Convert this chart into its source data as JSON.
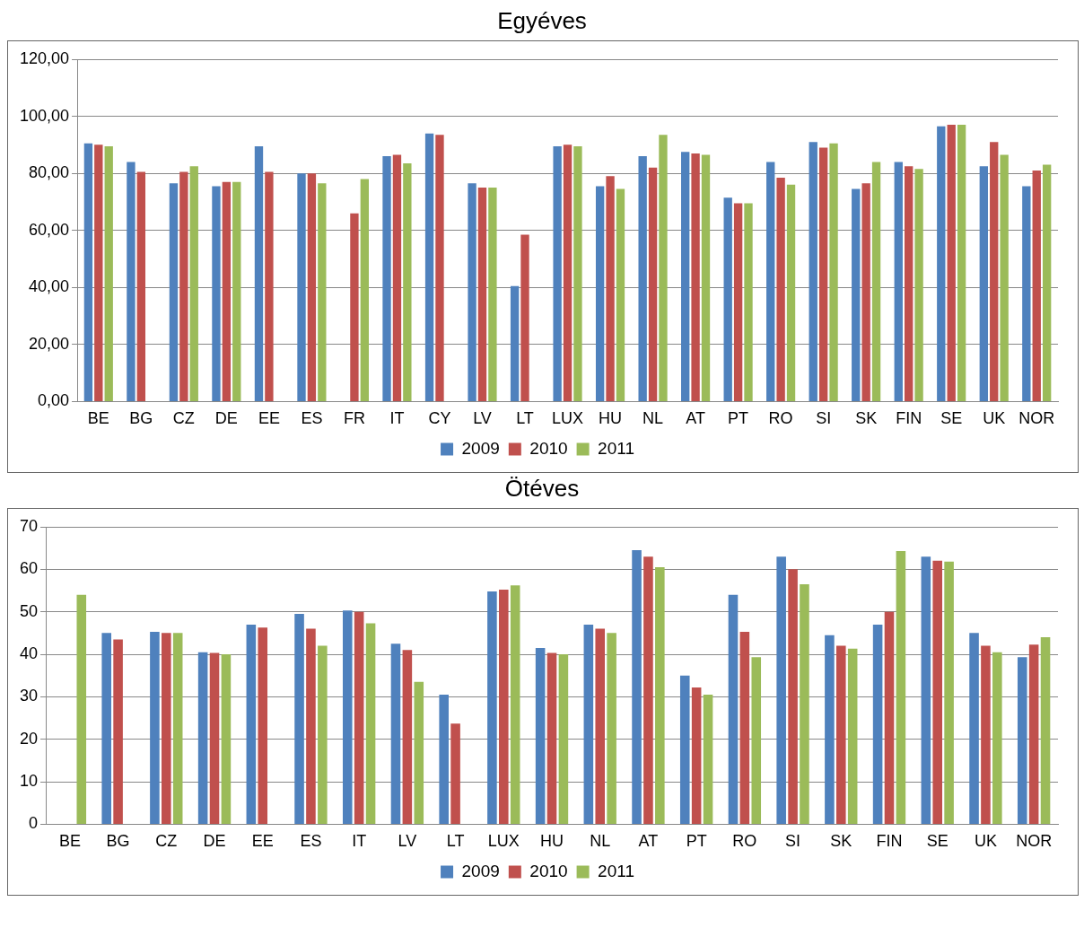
{
  "chart_data": [
    {
      "type": "bar",
      "title": "Egyéves",
      "categories": [
        "BE",
        "BG",
        "CZ",
        "DE",
        "EE",
        "ES",
        "FR",
        "IT",
        "CY",
        "LV",
        "LT",
        "LUX",
        "HU",
        "NL",
        "AT",
        "PT",
        "RO",
        "SI",
        "SK",
        "FIN",
        "SE",
        "UK",
        "NOR"
      ],
      "series": [
        {
          "name": "2009",
          "color": "#4f81bd",
          "values": [
            90.5,
            84,
            76.5,
            75.5,
            89.5,
            80,
            null,
            86,
            94,
            76.5,
            40.5,
            89.5,
            75.5,
            86,
            87.5,
            71.5,
            84,
            91,
            74.5,
            84,
            96.5,
            82.5,
            75.5
          ]
        },
        {
          "name": "2010",
          "color": "#c0504d",
          "values": [
            90,
            80.5,
            80.5,
            77,
            80.5,
            80,
            66,
            86.5,
            93.5,
            75,
            58.5,
            90,
            79,
            82,
            87,
            69.5,
            78.5,
            89,
            76.5,
            82.5,
            97,
            91,
            81
          ]
        },
        {
          "name": "2011",
          "color": "#9bbb59",
          "values": [
            89.5,
            null,
            82.5,
            77,
            null,
            76.5,
            78,
            83.5,
            null,
            75,
            null,
            89.5,
            74.5,
            93.5,
            86.5,
            69.5,
            76,
            90.5,
            84,
            81.5,
            97,
            86.5,
            83
          ]
        }
      ],
      "ylim": [
        0,
        120
      ],
      "yticks": [
        {
          "value": 0,
          "label": "0,00"
        },
        {
          "value": 20,
          "label": "20,00"
        },
        {
          "value": 40,
          "label": "40,00"
        },
        {
          "value": 60,
          "label": "60,00"
        },
        {
          "value": 80,
          "label": "80,00"
        },
        {
          "value": 100,
          "label": "100,00"
        },
        {
          "value": 120,
          "label": "120,00"
        }
      ],
      "grid": "y",
      "legend": "bottom"
    },
    {
      "type": "bar",
      "title": "Ötéves",
      "categories": [
        "BE",
        "BG",
        "CZ",
        "DE",
        "EE",
        "ES",
        "IT",
        "LV",
        "LT",
        "LUX",
        "HU",
        "NL",
        "AT",
        "PT",
        "RO",
        "SI",
        "SK",
        "FIN",
        "SE",
        "UK",
        "NOR"
      ],
      "series": [
        {
          "name": "2009",
          "color": "#4f81bd",
          "values": [
            null,
            45,
            45.3,
            40.5,
            47,
            49.5,
            50.3,
            42.5,
            30.5,
            54.8,
            41.5,
            47,
            64.5,
            35,
            54,
            63,
            44.5,
            47,
            63,
            45,
            39.3
          ]
        },
        {
          "name": "2010",
          "color": "#c0504d",
          "values": [
            null,
            43.5,
            45,
            40.3,
            46.3,
            46,
            50,
            41,
            23.7,
            55.2,
            40.3,
            46,
            63,
            32.2,
            45.3,
            60,
            42,
            50,
            62,
            42,
            42.3
          ]
        },
        {
          "name": "2011",
          "color": "#9bbb59",
          "values": [
            54,
            null,
            45,
            40,
            null,
            42,
            47.3,
            33.5,
            null,
            56.2,
            40,
            45,
            60.5,
            30.5,
            39.3,
            56.5,
            41.3,
            64.3,
            61.8,
            40.5,
            44
          ]
        }
      ],
      "ylim": [
        0,
        70
      ],
      "yticks": [
        0,
        10,
        20,
        30,
        40,
        50,
        60,
        70
      ],
      "grid": "y",
      "legend": "bottom"
    }
  ]
}
